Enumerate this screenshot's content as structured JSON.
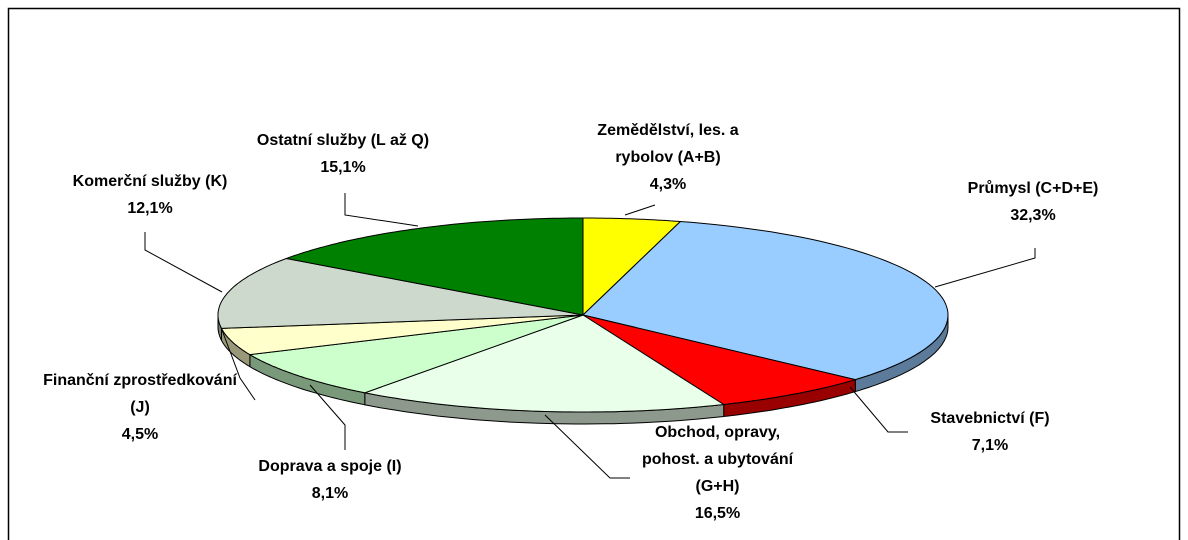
{
  "chart_data": {
    "type": "pie",
    "categories": [
      "Zemědělství, les. a rybolov (A+B)",
      "Průmysl (C+D+E)",
      "Stavebnictví (F)",
      "Obchod, opravy, pohost. a ubytování (G+H)",
      "Doprava a spoje (I)",
      "Finanční zprostředkování (J)",
      "Komerční služby (K)",
      "Ostatní služby (L až Q)"
    ],
    "values": [
      4.3,
      32.3,
      7.1,
      16.5,
      8.1,
      4.5,
      12.1,
      15.1
    ],
    "value_labels": [
      "4,3%",
      "32,3%",
      "7,1%",
      "16,5%",
      "8,1%",
      "4,5%",
      "12,1%",
      "15,1%"
    ],
    "colors": [
      "#ffff00",
      "#99ccff",
      "#ff0000",
      "#eaffea",
      "#ccffcc",
      "#ffffcc",
      "#ccd9cc",
      "#008000"
    ]
  }
}
